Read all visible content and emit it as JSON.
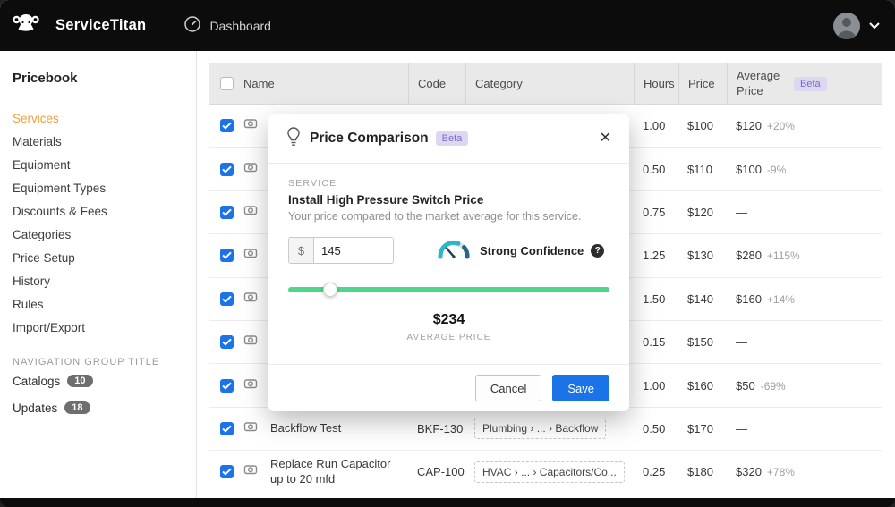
{
  "header": {
    "brand": "ServiceTitan",
    "nav_dashboard": "Dashboard"
  },
  "sidebar": {
    "title": "Pricebook",
    "items": [
      {
        "label": "Services",
        "active": true
      },
      {
        "label": "Materials",
        "active": false
      },
      {
        "label": "Equipment",
        "active": false
      },
      {
        "label": "Equipment Types",
        "active": false
      },
      {
        "label": "Discounts & Fees",
        "active": false
      },
      {
        "label": "Categories",
        "active": false
      },
      {
        "label": "Price Setup",
        "active": false
      },
      {
        "label": "History",
        "active": false
      },
      {
        "label": "Rules",
        "active": false
      },
      {
        "label": "Import/Export",
        "active": false
      }
    ],
    "group_title": "NAVIGATION GROUP TITLE",
    "group_items": [
      {
        "label": "Catalogs",
        "badge": "10"
      },
      {
        "label": "Updates",
        "badge": "18"
      }
    ]
  },
  "table": {
    "columns": [
      "Name",
      "Code",
      "Category",
      "Hours",
      "Price",
      "Average Price"
    ],
    "beta_badge": "Beta",
    "rows": [
      {
        "name": "",
        "name2": "",
        "code": "",
        "category": "",
        "hours": "1.00",
        "price": "$100",
        "avg": "$120",
        "delta": "+20%"
      },
      {
        "name": "",
        "name2": "",
        "code": "",
        "category": "",
        "hours": "0.50",
        "price": "$110",
        "avg": "$100",
        "delta": "-9%"
      },
      {
        "name": "",
        "name2": "",
        "code": "",
        "category": "",
        "hours": "0.75",
        "price": "$120",
        "avg": "—",
        "delta": ""
      },
      {
        "name": "",
        "name2": "",
        "code": "",
        "category": "",
        "hours": "1.25",
        "price": "$130",
        "avg": "$280",
        "delta": "+115%"
      },
      {
        "name": "",
        "name2": "",
        "code": "",
        "category": "",
        "hours": "1.50",
        "price": "$140",
        "avg": "$160",
        "delta": "+14%"
      },
      {
        "name": "",
        "name2": "",
        "code": "",
        "category": "",
        "hours": "0.15",
        "price": "$150",
        "avg": "—",
        "delta": ""
      },
      {
        "name": "",
        "name2": "",
        "code": "",
        "category": "",
        "hours": "1.00",
        "price": "$160",
        "avg": "$50",
        "delta": "-69%"
      },
      {
        "name": "Backflow Test",
        "name2": "",
        "code": "BKF-130",
        "category": "Plumbing  ›  ...  ›  Backflow",
        "hours": "0.50",
        "price": "$170",
        "avg": "—",
        "delta": ""
      },
      {
        "name": "Replace Run Capacitor",
        "name2": "up to 20 mfd",
        "code": "CAP-100",
        "category": "HVAC  ›  ...  ›  Capacitors/Co...",
        "hours": "0.25",
        "price": "$180",
        "avg": "$320",
        "delta": "+78%"
      }
    ]
  },
  "modal": {
    "title": "Price Comparison",
    "beta": "Beta",
    "close": "✕",
    "section_label": "SERVICE",
    "service_name": "Install High Pressure Switch Price",
    "description": "Your price compared to the market average for this service.",
    "currency": "$",
    "price_value": "145",
    "slider_percent": 13,
    "confidence": "Strong Confidence",
    "confidence_help": "?",
    "average_value": "$234",
    "average_label": "AVERAGE PRICE",
    "cancel": "Cancel",
    "save": "Save"
  }
}
